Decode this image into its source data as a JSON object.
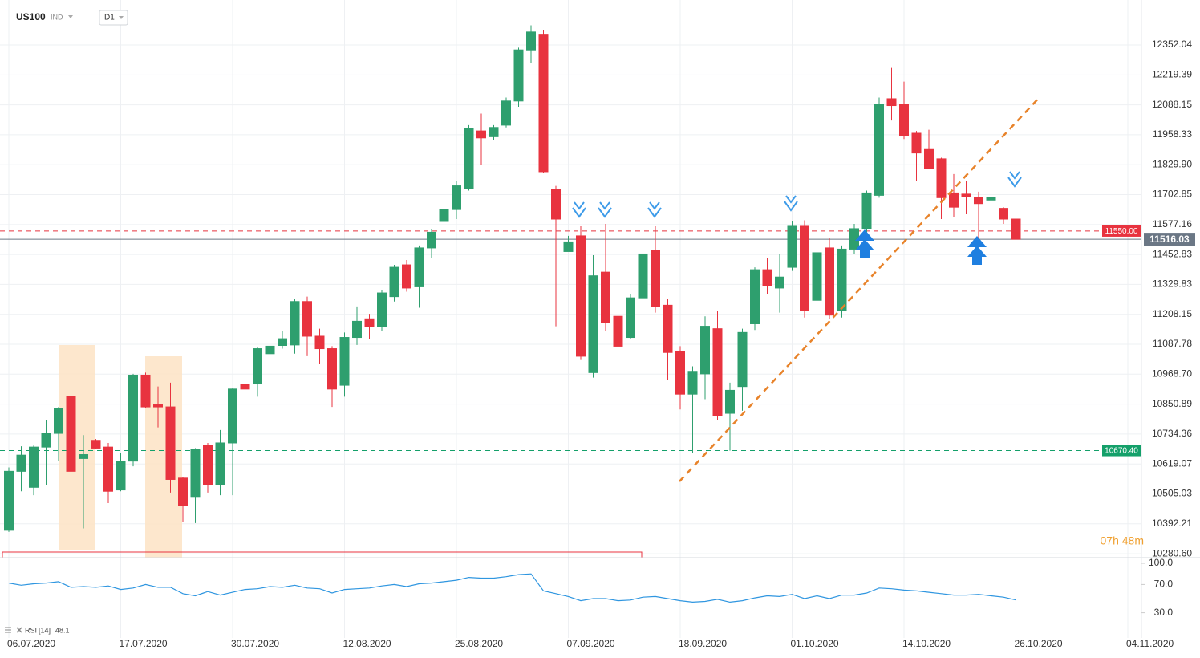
{
  "chart_data": {
    "type": "candlestick",
    "title": "US100",
    "instrument_type": "IND",
    "timeframe": "D1",
    "timer": "07h 48m",
    "log": true,
    "grid": true,
    "up_color": "#2e9f6e",
    "down_color": "#e8333f",
    "categories": [
      "06.07.2020",
      null,
      null,
      null,
      null,
      null,
      null,
      null,
      null,
      "17.07.2020",
      null,
      null,
      null,
      null,
      null,
      null,
      null,
      null,
      "30.07.2020",
      null,
      null,
      null,
      null,
      null,
      null,
      null,
      null,
      "12.08.2020",
      null,
      null,
      null,
      null,
      null,
      null,
      null,
      null,
      "25.08.2020",
      null,
      null,
      null,
      null,
      null,
      null,
      null,
      null,
      "07.09.2020",
      null,
      null,
      null,
      null,
      null,
      null,
      null,
      null,
      "18.09.2020",
      null,
      null,
      null,
      null,
      null,
      null,
      null,
      null,
      "01.10.2020",
      null,
      null,
      null,
      null,
      null,
      null,
      null,
      null,
      "14.10.2020",
      null,
      null,
      null,
      null,
      null,
      null,
      null,
      null,
      "26.10.2020",
      null,
      null,
      null,
      null,
      null,
      null,
      null,
      null,
      "04.11.2020"
    ],
    "open": [
      10368,
      10591,
      10530,
      10684,
      10737,
      10882,
      10640,
      10710,
      10684,
      10520,
      10630,
      10965,
      10848,
      10840,
      10565,
      10495,
      10690,
      10540,
      10700,
      10930,
      10930,
      11050,
      11083,
      11085,
      11260,
      11120,
      11070,
      10925,
      11115,
      11190,
      11160,
      11280,
      11410,
      11320,
      11480,
      11590,
      11640,
      11730,
      11975,
      11950,
      12000,
      12105,
      12330,
      12400,
      11725,
      11465,
      11530,
      10975,
      11380,
      11200,
      11115,
      11275,
      11470,
      11245,
      11060,
      10890,
      10970,
      11150,
      10815,
      10920,
      11170,
      11390,
      11315,
      11400,
      11570,
      11265,
      11480,
      11225,
      11475,
      11560,
      11700,
      12115,
      12090,
      11965,
      11895,
      11855,
      11710,
      11705,
      11690,
      11680,
      11645,
      11600,
      null,
      null,
      null,
      null,
      null,
      null,
      null,
      null,
      null
    ],
    "high": [
      10606,
      10687,
      10690,
      10790,
      10840,
      11070,
      10730,
      10715,
      10700,
      10660,
      10970,
      10975,
      10920,
      10935,
      10570,
      10680,
      10700,
      10750,
      10915,
      10940,
      11075,
      11100,
      11140,
      11270,
      11280,
      11150,
      11080,
      11135,
      11240,
      11210,
      11305,
      11410,
      11430,
      11490,
      11560,
      11715,
      11760,
      12000,
      12050,
      12000,
      12120,
      12340,
      12440,
      12420,
      11740,
      11530,
      11570,
      11450,
      11580,
      11225,
      11290,
      11475,
      11570,
      11270,
      11080,
      11000,
      11200,
      11220,
      10935,
      11150,
      11400,
      11440,
      11455,
      11590,
      11595,
      11480,
      11520,
      11490,
      11580,
      11720,
      12120,
      12250,
      12190,
      11975,
      11980,
      11860,
      11790,
      11760,
      11715,
      11695,
      11650,
      11695,
      null,
      null,
      null,
      null,
      null,
      null,
      null,
      null,
      null
    ],
    "low": [
      10362,
      10515,
      10500,
      10540,
      10630,
      10560,
      10375,
      10675,
      10470,
      10515,
      10610,
      10835,
      10760,
      10510,
      10400,
      10395,
      10510,
      10500,
      10500,
      10730,
      10880,
      11030,
      11070,
      11050,
      11040,
      11010,
      10840,
      10880,
      11085,
      11110,
      11140,
      11260,
      11300,
      11235,
      11440,
      11560,
      11600,
      11720,
      11830,
      11935,
      11990,
      12080,
      12270,
      11795,
      11160,
      11470,
      11025,
      10955,
      11140,
      10965,
      11110,
      11240,
      11215,
      10945,
      10830,
      10660,
      10870,
      10790,
      10670,
      10825,
      11145,
      11290,
      11215,
      11385,
      11195,
      11240,
      11190,
      11195,
      11455,
      11545,
      11690,
      12020,
      11940,
      11760,
      11810,
      11600,
      11610,
      11620,
      11520,
      11610,
      11580,
      11490,
      null,
      null,
      null,
      null,
      null,
      null,
      null,
      null,
      null
    ],
    "close": [
      10591,
      10653,
      10684,
      10737,
      10835,
      10591,
      10655,
      10680,
      10515,
      10630,
      10965,
      10840,
      10840,
      10560,
      10460,
      10675,
      10540,
      10700,
      10910,
      10910,
      11070,
      11080,
      11110,
      11260,
      11120,
      11070,
      10910,
      11115,
      11180,
      11160,
      11295,
      11400,
      11315,
      11480,
      11545,
      11640,
      11740,
      11985,
      11945,
      11990,
      12105,
      12330,
      12410,
      11800,
      11600,
      11505,
      11040,
      11365,
      11175,
      11080,
      11275,
      11455,
      11240,
      11055,
      10890,
      10980,
      11160,
      10805,
      10905,
      11135,
      11390,
      11325,
      11360,
      11570,
      11225,
      11460,
      11205,
      11475,
      11560,
      11710,
      12090,
      12085,
      11955,
      11880,
      11815,
      11690,
      11650,
      11695,
      11665,
      11690,
      11600,
      11516.03,
      null,
      null,
      null,
      null,
      null,
      null,
      null,
      null,
      null
    ],
    "ylim": [
      10266,
      12525
    ],
    "yticks": [
      {
        "value": 12352.04,
        "label": "12352.04"
      },
      {
        "value": 12219.39,
        "label": "12219.39"
      },
      {
        "value": 12088.15,
        "label": "12088.15"
      },
      {
        "value": 11958.33,
        "label": "11958.33"
      },
      {
        "value": 11829.9,
        "label": "11829.90"
      },
      {
        "value": 11702.85,
        "label": "11702.85"
      },
      {
        "value": 11577.16,
        "label": "11577.16"
      },
      {
        "value": 11452.83,
        "label": "11452.83"
      },
      {
        "value": 11329.83,
        "label": "11329.83"
      },
      {
        "value": 11208.15,
        "label": "11208.15"
      },
      {
        "value": 11087.78,
        "label": "11087.78"
      },
      {
        "value": 10968.7,
        "label": "10968.70"
      },
      {
        "value": 10850.89,
        "label": "10850.89"
      },
      {
        "value": 10734.36,
        "label": "10734.36"
      },
      {
        "value": 10619.07,
        "label": "10619.07"
      },
      {
        "value": 10505.03,
        "label": "10505.03"
      },
      {
        "value": 10392.21,
        "label": "10392.21"
      },
      {
        "value": 10280.6,
        "label": "10280.60"
      }
    ],
    "levels": [
      {
        "value": 11550,
        "label": "11550.00",
        "color": "#e8333f"
      },
      {
        "value": 10670.4,
        "label": "10670.40",
        "color": "#14a06a"
      }
    ],
    "last_price": {
      "value": 11516.03,
      "label": "11516.03",
      "color": "#6b7785"
    },
    "indicator": {
      "name": "RSI",
      "period_label": "[14]",
      "value": 48.1,
      "color": "#2f96e0",
      "ylim": [
        0,
        100
      ],
      "yticks": [
        {
          "value": 100,
          "label": "100.0"
        },
        {
          "value": 70,
          "label": "70.0"
        },
        {
          "value": 30,
          "label": "30.0"
        }
      ],
      "values": [
        72,
        69,
        71,
        72,
        74,
        66,
        67,
        66,
        68,
        63,
        65,
        70,
        66,
        66,
        57,
        54,
        60,
        55,
        59,
        63,
        64,
        67,
        66,
        69,
        65,
        64,
        58,
        63,
        64,
        65,
        68,
        70,
        67,
        71,
        72,
        74,
        76,
        80,
        79,
        79,
        81,
        84,
        85,
        61,
        57,
        53,
        47,
        50,
        50,
        47,
        48,
        52,
        53,
        50,
        47,
        45,
        46,
        49,
        45,
        47,
        51,
        54,
        53,
        56,
        50,
        54,
        50,
        55,
        55,
        58,
        65,
        64,
        62,
        61,
        59,
        57,
        55,
        55,
        56,
        54,
        52,
        48.1,
        null,
        null,
        null,
        null,
        null,
        null,
        null,
        null,
        null
      ]
    }
  }
}
